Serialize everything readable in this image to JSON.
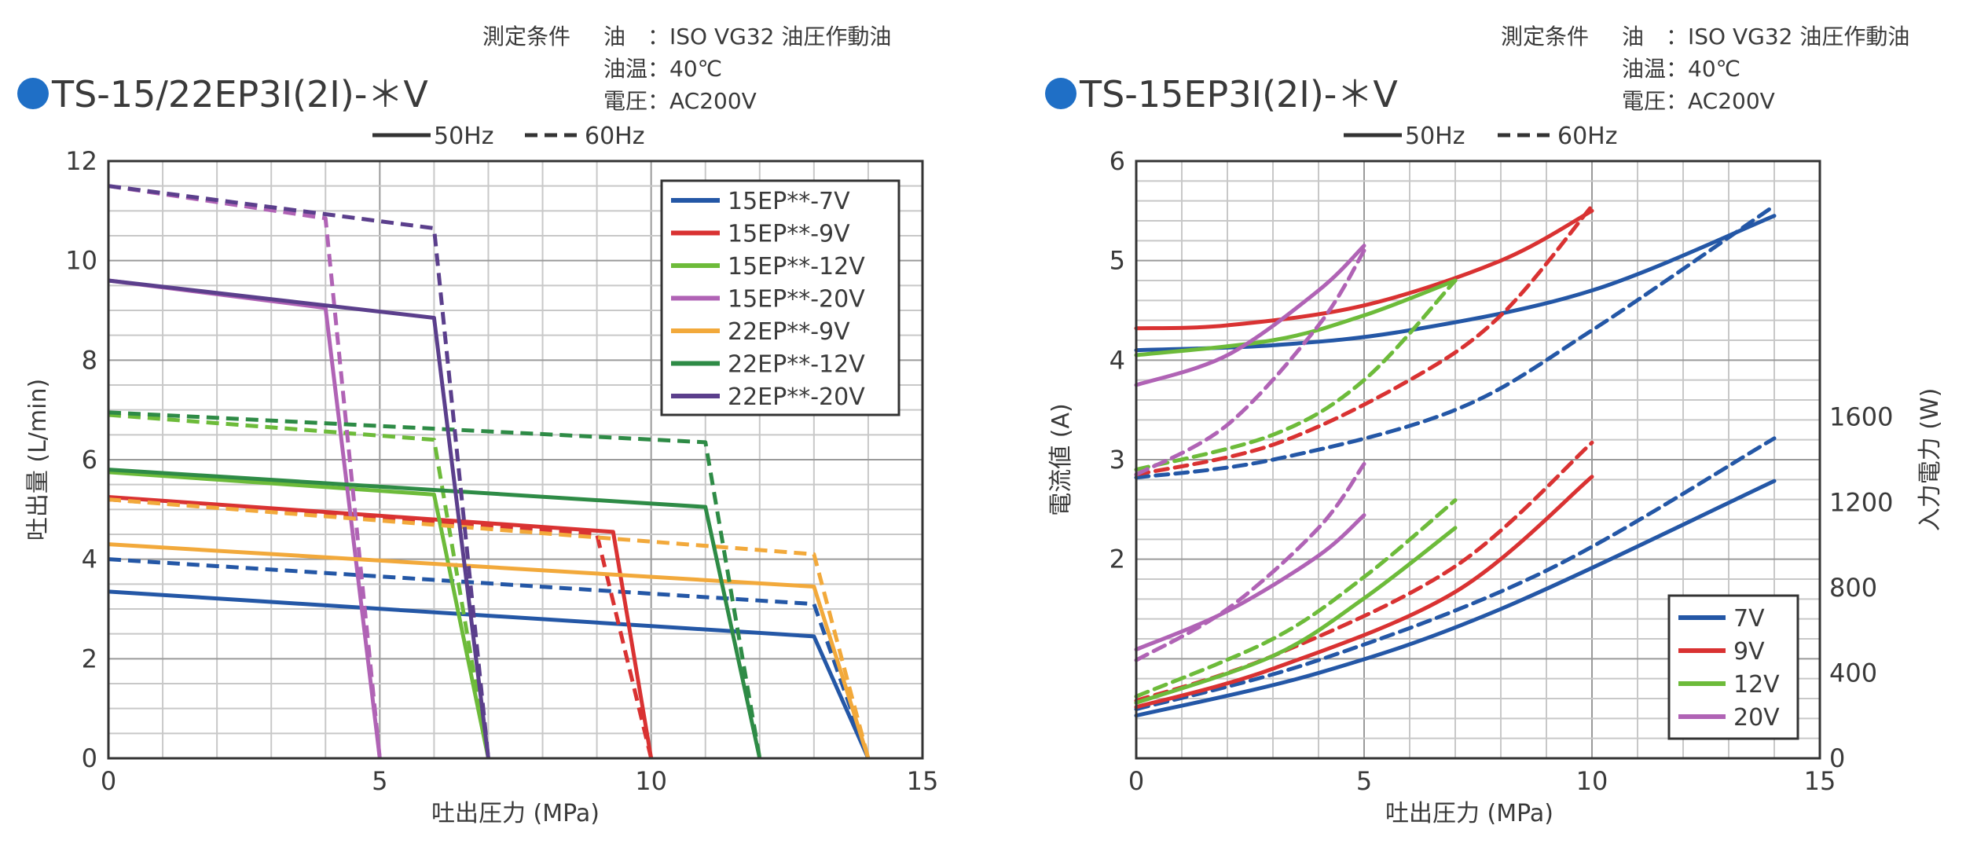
{
  "charts": [
    {
      "type": "line",
      "title": "TS-15/22EP3I(2I)-＊V",
      "conditions": [
        "測定条件",
        "油　：ISO VG32 油圧作動油",
        "油温：40℃",
        "電圧：AC200V"
      ],
      "linestyle_legend": [
        "50Hz",
        "60Hz"
      ],
      "xlabel": "吐出圧力 (MPa)",
      "ylabel": "吐出量 (L/min)",
      "xlim": [
        0,
        15
      ],
      "ylim": [
        0,
        12
      ],
      "x_ticks": [
        "0",
        "5",
        "10",
        "15"
      ],
      "y_ticks": [
        "0",
        "2",
        "4",
        "6",
        "8",
        "10",
        "12"
      ],
      "grid": true,
      "legend_position": "top-right",
      "series": [
        {
          "name": "15EP**-7V",
          "hz": "50Hz",
          "color": "#2457a6",
          "points": [
            [
              0,
              3.35
            ],
            [
              13,
              2.45
            ],
            [
              14,
              0
            ]
          ]
        },
        {
          "name": "15EP**-7V",
          "hz": "60Hz",
          "color": "#2457a6",
          "points": [
            [
              0,
              4.0
            ],
            [
              13,
              3.1
            ],
            [
              14,
              0
            ]
          ]
        },
        {
          "name": "15EP**-9V",
          "hz": "50Hz",
          "color": "#d93232",
          "points": [
            [
              0,
              5.25
            ],
            [
              9.3,
              4.55
            ],
            [
              10,
              0
            ]
          ]
        },
        {
          "name": "15EP**-9V",
          "hz": "60Hz",
          "color": "#d93232",
          "points": [
            [
              0,
              5.2
            ],
            [
              9,
              4.5
            ],
            [
              10,
              0
            ]
          ]
        },
        {
          "name": "15EP**-12V",
          "hz": "50Hz",
          "color": "#6dbb3a",
          "points": [
            [
              0,
              5.75
            ],
            [
              6,
              5.3
            ],
            [
              7,
              0
            ]
          ]
        },
        {
          "name": "15EP**-12V",
          "hz": "60Hz",
          "color": "#6dbb3a",
          "points": [
            [
              0,
              6.9
            ],
            [
              6,
              6.4
            ],
            [
              7,
              0
            ]
          ]
        },
        {
          "name": "15EP**-20V",
          "hz": "50Hz",
          "color": "#b063b5",
          "points": [
            [
              0,
              9.6
            ],
            [
              4,
              9.05
            ],
            [
              5,
              0
            ]
          ]
        },
        {
          "name": "15EP**-20V",
          "hz": "60Hz",
          "color": "#b063b5",
          "points": [
            [
              0,
              11.5
            ],
            [
              4,
              10.85
            ],
            [
              5,
              0
            ]
          ]
        },
        {
          "name": "22EP**-9V",
          "hz": "50Hz",
          "color": "#f2a93b",
          "points": [
            [
              0,
              4.3
            ],
            [
              13,
              3.45
            ],
            [
              14,
              0
            ]
          ]
        },
        {
          "name": "22EP**-9V",
          "hz": "60Hz",
          "color": "#f2a93b",
          "points": [
            [
              0,
              5.2
            ],
            [
              13,
              4.1
            ],
            [
              14,
              0
            ]
          ]
        },
        {
          "name": "22EP**-12V",
          "hz": "50Hz",
          "color": "#2e8b46",
          "points": [
            [
              0,
              5.8
            ],
            [
              11,
              5.05
            ],
            [
              12,
              0
            ]
          ]
        },
        {
          "name": "22EP**-12V",
          "hz": "60Hz",
          "color": "#2e8b46",
          "points": [
            [
              0,
              6.95
            ],
            [
              11,
              6.35
            ],
            [
              12,
              0
            ]
          ]
        },
        {
          "name": "22EP**-20V",
          "hz": "50Hz",
          "color": "#5b3f8c",
          "points": [
            [
              0,
              9.6
            ],
            [
              6,
              8.85
            ],
            [
              7,
              0
            ]
          ]
        },
        {
          "name": "22EP**-20V",
          "hz": "60Hz",
          "color": "#5b3f8c",
          "points": [
            [
              0,
              11.5
            ],
            [
              6,
              10.65
            ],
            [
              7,
              0
            ]
          ]
        }
      ],
      "legend": [
        {
          "label": "15EP**-7V",
          "color": "#2457a6"
        },
        {
          "label": "15EP**-9V",
          "color": "#d93232"
        },
        {
          "label": "15EP**-12V",
          "color": "#6dbb3a"
        },
        {
          "label": "15EP**-20V",
          "color": "#b063b5"
        },
        {
          "label": "22EP**-9V",
          "color": "#f2a93b"
        },
        {
          "label": "22EP**-12V",
          "color": "#2e8b46"
        },
        {
          "label": "22EP**-20V",
          "color": "#5b3f8c"
        }
      ]
    },
    {
      "type": "line",
      "title": "TS-15EP3I(2I)-＊V",
      "conditions": [
        "測定条件",
        "油　：ISO VG32 油圧作動油",
        "油温：40℃",
        "電圧：AC200V"
      ],
      "linestyle_legend": [
        "50Hz",
        "60Hz"
      ],
      "xlabel": "吐出圧力 (MPa)",
      "ylabel": "電流値 (A)",
      "y2label": "入力電力 (W)",
      "xlim": [
        0,
        15
      ],
      "ylim": [
        0,
        6
      ],
      "y2lim": [
        0,
        2800
      ],
      "x_ticks": [
        "0",
        "5",
        "10",
        "15"
      ],
      "y_ticks": [
        "2",
        "3",
        "4",
        "5",
        "6"
      ],
      "y2_ticks": [
        "0",
        "400",
        "800",
        "1200",
        "1600"
      ],
      "grid": true,
      "legend_position": "bottom-right",
      "current_series": [
        {
          "name": "7V",
          "hz": "50Hz",
          "color": "#2457a6",
          "points": [
            [
              0,
              4.1
            ],
            [
              3,
              4.15
            ],
            [
              6,
              4.3
            ],
            [
              10,
              4.7
            ],
            [
              14,
              5.45
            ]
          ]
        },
        {
          "name": "7V",
          "hz": "60Hz",
          "color": "#2457a6",
          "points": [
            [
              0,
              2.82
            ],
            [
              3,
              3.0
            ],
            [
              7,
              3.5
            ],
            [
              10,
              4.3
            ],
            [
              14,
              5.55
            ]
          ]
        },
        {
          "name": "9V",
          "hz": "50Hz",
          "color": "#d93232",
          "points": [
            [
              0,
              4.32
            ],
            [
              2,
              4.35
            ],
            [
              5,
              4.55
            ],
            [
              8,
              5.0
            ],
            [
              10,
              5.5
            ]
          ]
        },
        {
          "name": "9V",
          "hz": "60Hz",
          "color": "#d93232",
          "points": [
            [
              0,
              2.85
            ],
            [
              3,
              3.15
            ],
            [
              6,
              3.8
            ],
            [
              8,
              4.45
            ],
            [
              10,
              5.55
            ]
          ]
        },
        {
          "name": "12V",
          "hz": "50Hz",
          "color": "#6dbb3a",
          "points": [
            [
              0,
              4.05
            ],
            [
              3,
              4.2
            ],
            [
              5,
              4.45
            ],
            [
              7,
              4.8
            ]
          ]
        },
        {
          "name": "12V",
          "hz": "60Hz",
          "color": "#6dbb3a",
          "points": [
            [
              0,
              2.9
            ],
            [
              3,
              3.25
            ],
            [
              5,
              3.8
            ],
            [
              7,
              4.8
            ]
          ]
        },
        {
          "name": "20V",
          "hz": "50Hz",
          "color": "#b063b5",
          "points": [
            [
              0,
              3.75
            ],
            [
              2,
              4.05
            ],
            [
              4,
              4.7
            ],
            [
              5,
              5.15
            ]
          ]
        },
        {
          "name": "20V",
          "hz": "60Hz",
          "color": "#b063b5",
          "points": [
            [
              0,
              2.85
            ],
            [
              2,
              3.35
            ],
            [
              4,
              4.35
            ],
            [
              5,
              5.1
            ]
          ]
        }
      ],
      "power_series": [
        {
          "name": "7V",
          "hz": "50Hz",
          "color": "#2457a6",
          "points": [
            [
              0,
              200
            ],
            [
              4,
              400
            ],
            [
              8,
              700
            ],
            [
              14,
              1300
            ]
          ]
        },
        {
          "name": "7V",
          "hz": "60Hz",
          "color": "#2457a6",
          "points": [
            [
              0,
              230
            ],
            [
              4,
              460
            ],
            [
              9,
              880
            ],
            [
              14,
              1500
            ]
          ]
        },
        {
          "name": "9V",
          "hz": "50Hz",
          "color": "#d93232",
          "points": [
            [
              0,
              240
            ],
            [
              3,
              420
            ],
            [
              7,
              780
            ],
            [
              10,
              1320
            ]
          ]
        },
        {
          "name": "9V",
          "hz": "60Hz",
          "color": "#d93232",
          "points": [
            [
              0,
              270
            ],
            [
              3,
              480
            ],
            [
              7,
              900
            ],
            [
              10,
              1480
            ]
          ]
        },
        {
          "name": "12V",
          "hz": "50Hz",
          "color": "#6dbb3a",
          "points": [
            [
              0,
              260
            ],
            [
              3,
              480
            ],
            [
              5,
              750
            ],
            [
              7,
              1080
            ]
          ]
        },
        {
          "name": "12V",
          "hz": "60Hz",
          "color": "#6dbb3a",
          "points": [
            [
              0,
              290
            ],
            [
              3,
              560
            ],
            [
              5,
              850
            ],
            [
              7,
              1210
            ]
          ]
        },
        {
          "name": "20V",
          "hz": "50Hz",
          "color": "#b063b5",
          "points": [
            [
              0,
              510
            ],
            [
              2,
              690
            ],
            [
              4,
              950
            ],
            [
              5,
              1140
            ]
          ]
        },
        {
          "name": "20V",
          "hz": "60Hz",
          "color": "#b063b5",
          "points": [
            [
              0,
              460
            ],
            [
              2,
              700
            ],
            [
              4,
              1080
            ],
            [
              5,
              1380
            ]
          ]
        }
      ],
      "legend": [
        {
          "label": "7V",
          "color": "#2457a6"
        },
        {
          "label": "9V",
          "color": "#d93232"
        },
        {
          "label": "12V",
          "color": "#6dbb3a"
        },
        {
          "label": "20V",
          "color": "#b063b5"
        }
      ]
    }
  ]
}
